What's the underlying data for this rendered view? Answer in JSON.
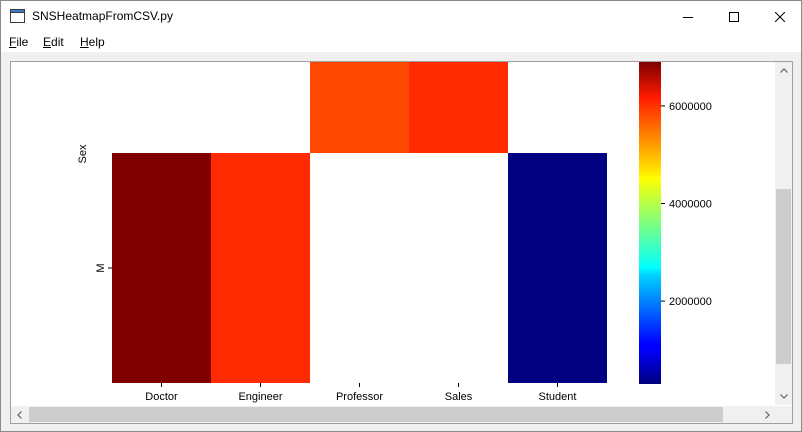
{
  "window": {
    "title": "SNSHeatmapFromCSV.py",
    "icon": "python-window-icon",
    "controls": [
      "minimize-icon",
      "maximize-icon",
      "close-icon"
    ]
  },
  "menu": {
    "file": {
      "mnemonic": "F",
      "rest": "ile"
    },
    "edit": {
      "mnemonic": "E",
      "rest": "dit"
    },
    "help": {
      "mnemonic": "H",
      "rest": "elp"
    }
  },
  "chart_data": {
    "type": "heatmap",
    "title": "",
    "xlabel": "",
    "ylabel": "Sex",
    "x": [
      "Doctor",
      "Engineer",
      "Professor",
      "Sales",
      "Student"
    ],
    "y": [
      "",
      "M"
    ],
    "values": [
      [
        null,
        null,
        5600000,
        5800000,
        null
      ],
      [
        6900000,
        5800000,
        null,
        null,
        300000
      ]
    ],
    "colormap": "jet",
    "colorbar": {
      "range": [
        300000,
        6900000
      ],
      "ticks": [
        2000000,
        4000000,
        6000000
      ],
      "tick_labels": [
        "2000000",
        "4000000",
        "6000000"
      ]
    },
    "grid": false,
    "legend": "none"
  }
}
